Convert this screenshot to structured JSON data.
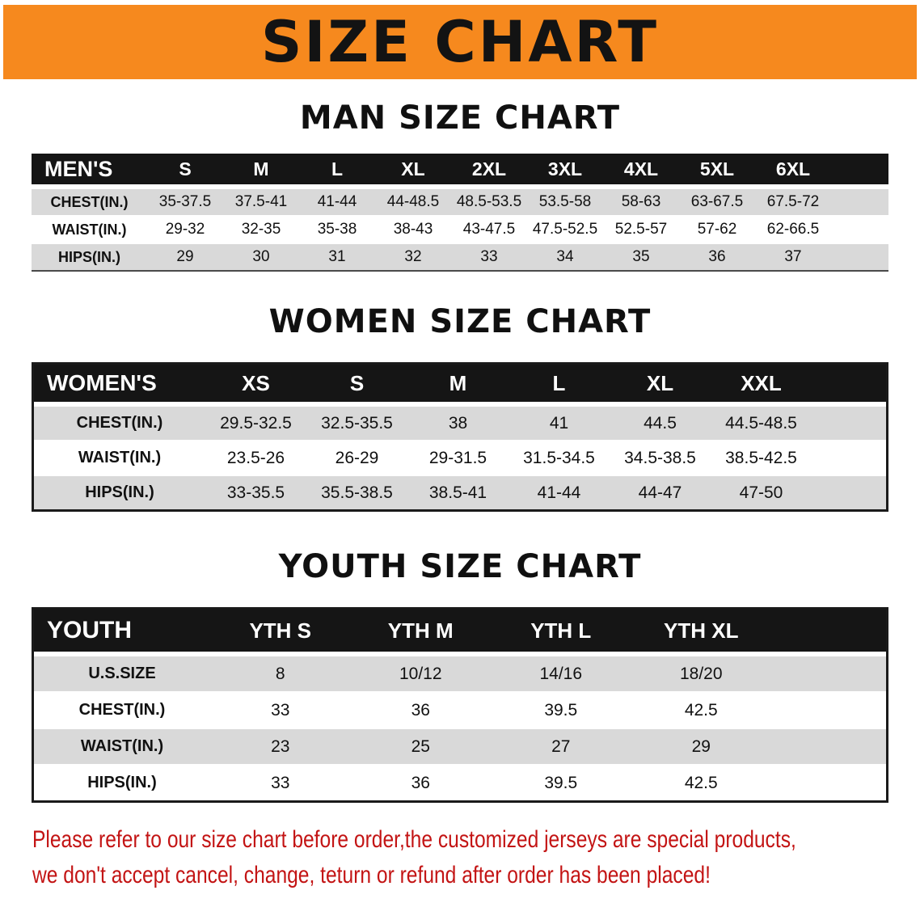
{
  "banner": {
    "title": "SIZE CHART"
  },
  "sections": [
    {
      "heading": "MAN SIZE CHART",
      "table": {
        "header_label": "MEN'S",
        "columns": [
          "S",
          "M",
          "L",
          "XL",
          "2XL",
          "3XL",
          "4XL",
          "5XL",
          "6XL"
        ],
        "rows": [
          {
            "label": "CHEST(IN.)",
            "values": [
              "35-37.5",
              "37.5-41",
              "41-44",
              "44-48.5",
              "48.5-53.5",
              "53.5-58",
              "58-63",
              "63-67.5",
              "67.5-72"
            ]
          },
          {
            "label": "WAIST(IN.)",
            "values": [
              "29-32",
              "32-35",
              "35-38",
              "38-43",
              "43-47.5",
              "47.5-52.5",
              "52.5-57",
              "57-62",
              "62-66.5"
            ]
          },
          {
            "label": "HIPS(IN.)",
            "values": [
              "29",
              "30",
              "31",
              "32",
              "33",
              "34",
              "35",
              "36",
              "37"
            ]
          }
        ]
      }
    },
    {
      "heading": "WOMEN SIZE CHART",
      "table": {
        "header_label": "WOMEN'S",
        "columns": [
          "XS",
          "S",
          "M",
          "L",
          "XL",
          "XXL"
        ],
        "rows": [
          {
            "label": "CHEST(IN.)",
            "values": [
              "29.5-32.5",
              "32.5-35.5",
              "38",
              "41",
              "44.5",
              "44.5-48.5"
            ]
          },
          {
            "label": "WAIST(IN.)",
            "values": [
              "23.5-26",
              "26-29",
              "29-31.5",
              "31.5-34.5",
              "34.5-38.5",
              "38.5-42.5"
            ]
          },
          {
            "label": "HIPS(IN.)",
            "values": [
              "33-35.5",
              "35.5-38.5",
              "38.5-41",
              "41-44",
              "44-47",
              "47-50"
            ]
          }
        ]
      }
    },
    {
      "heading": "YOUTH SIZE CHART",
      "table": {
        "header_label": "YOUTH",
        "columns": [
          "YTH S",
          "YTH M",
          "YTH L",
          "YTH XL"
        ],
        "rows": [
          {
            "label": "U.S.SIZE",
            "values": [
              "8",
              "10/12",
              "14/16",
              "18/20"
            ]
          },
          {
            "label": "CHEST(IN.)",
            "values": [
              "33",
              "36",
              "39.5",
              "42.5"
            ]
          },
          {
            "label": "WAIST(IN.)",
            "values": [
              "23",
              "25",
              "27",
              "29"
            ]
          },
          {
            "label": "HIPS(IN.)",
            "values": [
              "33",
              "36",
              "39.5",
              "42.5"
            ]
          }
        ]
      }
    }
  ],
  "footer": {
    "line1": "Please refer to our size chart before order,the customized jerseys are special products,",
    "line2": "we don't accept cancel, change, teturn or refund after order has been placed!"
  },
  "colors": {
    "banner_orange": "#F6891E",
    "header_black": "#151515",
    "row_gray": "#D9D9D9",
    "notice_red": "#C31414"
  }
}
